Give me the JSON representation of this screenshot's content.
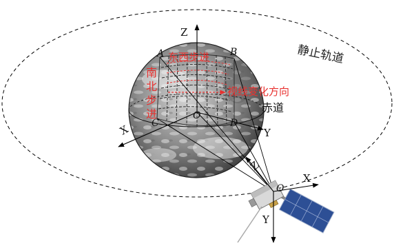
{
  "labels": {
    "orbit": "静止轨道",
    "equator": "赤道",
    "ew_step": "东西步进",
    "ns_step": [
      "南",
      "北",
      "步",
      "进"
    ],
    "los_change": "视线变化方向",
    "corner_a": "A",
    "corner_b": "B",
    "corner_c": "C",
    "corner_d": "D",
    "earth_origin": "O",
    "sat_origin": "O",
    "earth_axes": {
      "z": "Z",
      "x": "X",
      "y": "Y"
    },
    "sat_axes": {
      "z": "Z",
      "x": "X",
      "y": "Y"
    }
  },
  "colors": {
    "annotation_red": "#e8312f",
    "earth_dark": "#4a4a4a",
    "earth_light": "#bdbdbd",
    "panel_blue": "#2d4f95"
  }
}
